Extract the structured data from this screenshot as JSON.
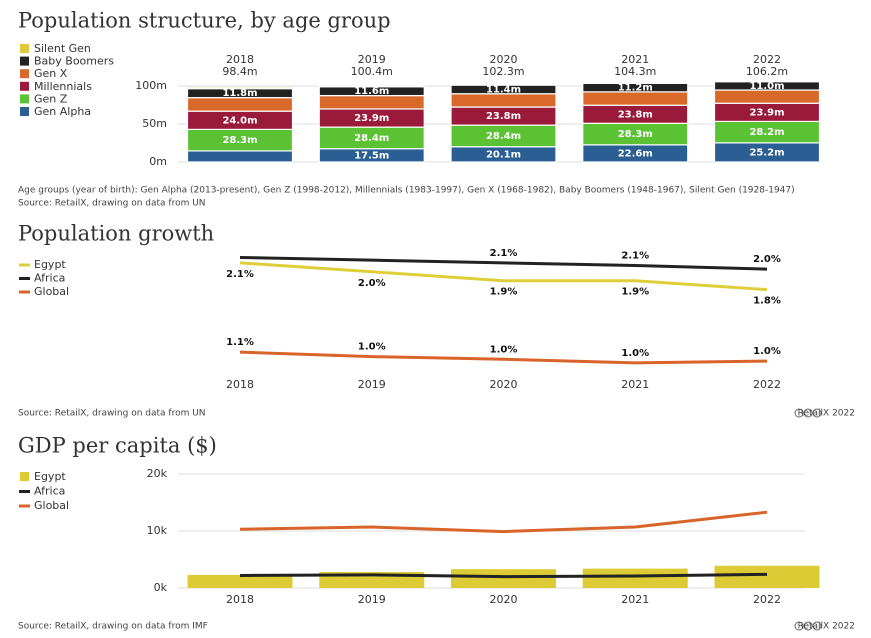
{
  "chart_data": [
    {
      "type": "bar",
      "stacked": true,
      "title": "Population structure, by age group",
      "categories": [
        "2018",
        "2019",
        "2020",
        "2021",
        "2022"
      ],
      "totals": [
        {
          "value": 98.4,
          "label": "98.4m"
        },
        {
          "value": 100.4,
          "label": "100.4m"
        },
        {
          "value": 102.3,
          "label": "102.3m"
        },
        {
          "value": 104.3,
          "label": "104.3m"
        },
        {
          "value": 106.2,
          "label": "106.2m"
        }
      ],
      "series": [
        {
          "name": "Gen Alpha",
          "color": "#2b5f93",
          "values": [
            14.6,
            17.5,
            20.1,
            22.6,
            25.2
          ],
          "value_labels": [
            null,
            "17.5m",
            "20.1m",
            "22.6m",
            "25.2m"
          ]
        },
        {
          "name": "Gen Z",
          "color": "#5bc234",
          "values": [
            28.3,
            28.4,
            28.4,
            28.3,
            28.2
          ],
          "value_labels": [
            "28.3m",
            "28.4m",
            "28.4m",
            "28.3m",
            "28.2m"
          ]
        },
        {
          "name": "Millennials",
          "color": "#9a1a3c",
          "values": [
            24.0,
            23.9,
            23.8,
            23.8,
            23.9
          ],
          "value_labels": [
            "24.0m",
            "23.9m",
            "23.8m",
            "23.8m",
            "23.9m"
          ]
        },
        {
          "name": "Gen X",
          "color": "#d8692a",
          "values": [
            17.8,
            17.6,
            17.5,
            17.6,
            17.4
          ],
          "value_labels": [
            null,
            null,
            null,
            null,
            null
          ]
        },
        {
          "name": "Baby Boomers",
          "color": "#222222",
          "values": [
            11.8,
            11.6,
            11.4,
            11.2,
            11.0
          ],
          "value_labels": [
            "11.8m",
            "11.6m",
            "11.4m",
            "11.2m",
            "11.0m"
          ]
        },
        {
          "name": "Silent Gen",
          "color": "#ddc93b",
          "values": [
            1.9,
            1.4,
            1.1,
            0.8,
            0.5
          ],
          "value_labels": [
            null,
            null,
            null,
            null,
            null
          ]
        }
      ],
      "ylim": [
        0,
        110
      ],
      "yticks": [
        {
          "value": 0,
          "label": "0m"
        },
        {
          "value": 50,
          "label": "50m"
        },
        {
          "value": 100,
          "label": "100m"
        }
      ],
      "grid": true,
      "note": "Age groups (year of birth): Gen Alpha (2013-present), Gen Z (1998-2012), Millennials (1983-1997), Gen X (1968-1982), Baby Boomers (1948-1967), Silent Gen (1928-1947)",
      "source": "Source: RetailX, drawing on data from UN"
    },
    {
      "type": "line",
      "title": "Population growth",
      "categories": [
        "2018",
        "2019",
        "2020",
        "2021",
        "2022"
      ],
      "series": [
        {
          "name": "Egypt",
          "color": "#ddcf3a",
          "values": [
            2.1,
            2.0,
            1.9,
            1.9,
            1.8
          ],
          "value_labels": [
            "2.1%",
            "2.0%",
            "1.9%",
            "1.9%",
            "1.8%"
          ]
        },
        {
          "name": "Africa",
          "color": "#222222",
          "values": [
            2.16,
            2.13,
            2.1,
            2.07,
            2.03
          ],
          "value_labels": [
            null,
            null,
            "2.1%",
            "2.1%",
            "2.0%"
          ]
        },
        {
          "name": "Global",
          "color": "#d9642a",
          "values": [
            1.1,
            1.05,
            1.02,
            0.98,
            1.0
          ],
          "value_labels": [
            "1.1%",
            "1.0%",
            "1.0%",
            "1.0%",
            "1.0%"
          ]
        }
      ],
      "ylim": [
        0.9,
        2.3
      ],
      "source": "Source: RetailX, drawing on data from UN",
      "credit": "RetailX 2022"
    },
    {
      "type": "combo",
      "title": "GDP per capita ($)",
      "categories": [
        "2018",
        "2019",
        "2020",
        "2021",
        "2022"
      ],
      "series": [
        {
          "name": "Egypt",
          "type": "bar",
          "color": "#dccb35",
          "values": [
            2300,
            2800,
            3300,
            3400,
            3900
          ]
        },
        {
          "name": "Africa",
          "type": "line",
          "color": "#222222",
          "values": [
            2200,
            2300,
            2000,
            2100,
            2400
          ]
        },
        {
          "name": "Global",
          "type": "line",
          "color": "#d9642a",
          "values": [
            10300,
            10700,
            9900,
            10700,
            13300
          ]
        }
      ],
      "ylim": [
        0,
        20000
      ],
      "yticks": [
        {
          "value": 0,
          "label": "0k"
        },
        {
          "value": 10000,
          "label": "10k"
        },
        {
          "value": 20000,
          "label": "20k"
        }
      ],
      "grid": true,
      "source": "Source: RetailX, drawing on data from IMF",
      "credit": "RetailX 2022"
    }
  ]
}
